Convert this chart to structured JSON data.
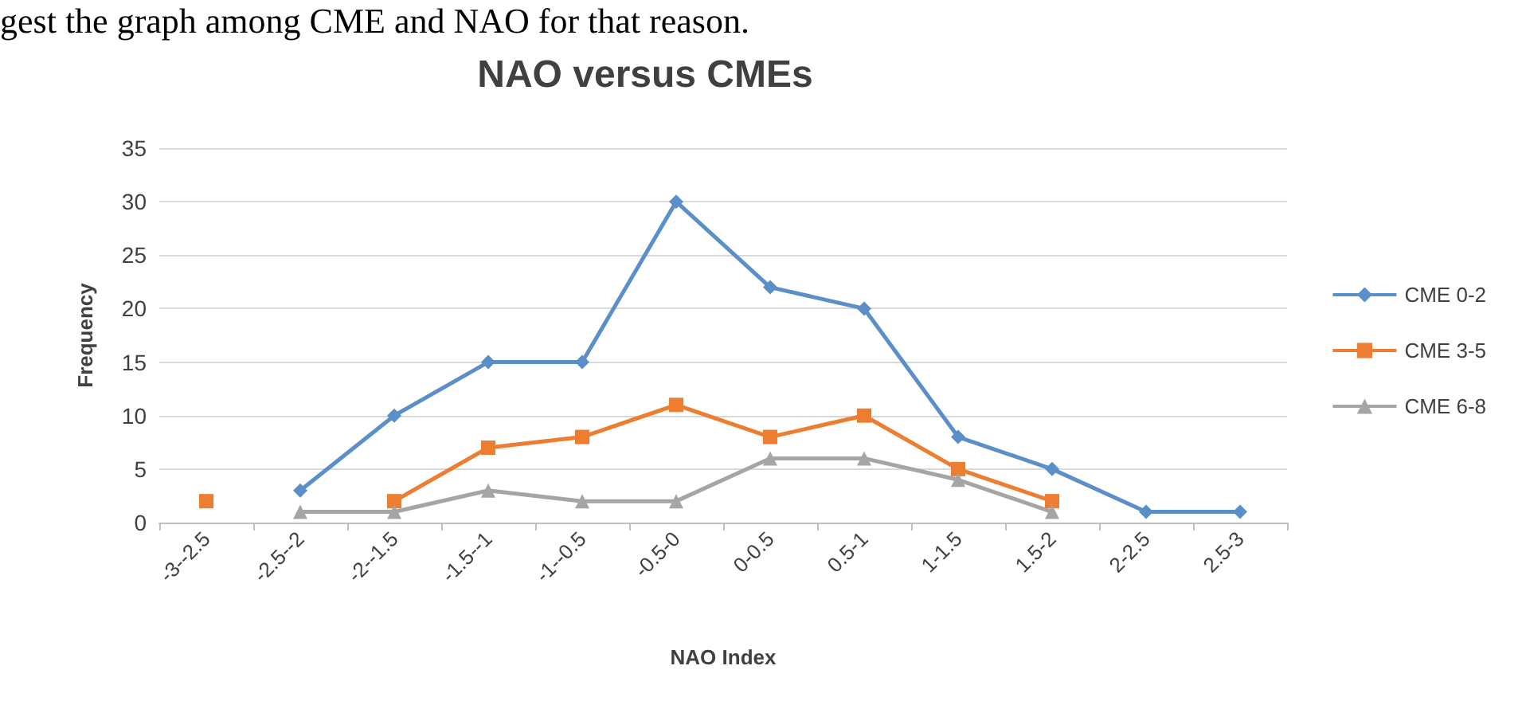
{
  "chart_data": {
    "type": "line",
    "title": "NAO versus CMEs",
    "xlabel": "NAO Index",
    "ylabel": "Frequency",
    "annotations": [
      "gest the graph among CME and NAO for that reason."
    ],
    "categories": [
      "-3--2.5",
      "-2.5--2",
      "-2--1.5",
      "-1.5--1",
      "-1--0.5",
      "-0.5-0",
      "0-0.5",
      "0.5-1",
      "1-1.5",
      "1.5-2",
      "2-2.5",
      "2.5-3"
    ],
    "series": [
      {
        "name": "CME 0-2",
        "color": "#5b8fc9",
        "marker": "diamond",
        "values": [
          null,
          3,
          10,
          15,
          15,
          30,
          22,
          20,
          8,
          5,
          1,
          1
        ]
      },
      {
        "name": "CME 3-5",
        "color": "#ed7d31",
        "marker": "square",
        "values": [
          2,
          null,
          2,
          7,
          8,
          11,
          8,
          10,
          5,
          2,
          null,
          null
        ]
      },
      {
        "name": "CME 6-8",
        "color": "#a5a5a5",
        "marker": "triangle",
        "values": [
          null,
          1,
          1,
          3,
          2,
          2,
          6,
          6,
          4,
          1,
          null,
          null
        ]
      }
    ],
    "ylim": [
      0,
      35
    ],
    "yticks": [
      0,
      5,
      10,
      15,
      20,
      25,
      30,
      35
    ],
    "grid": "y",
    "legend": "right"
  }
}
